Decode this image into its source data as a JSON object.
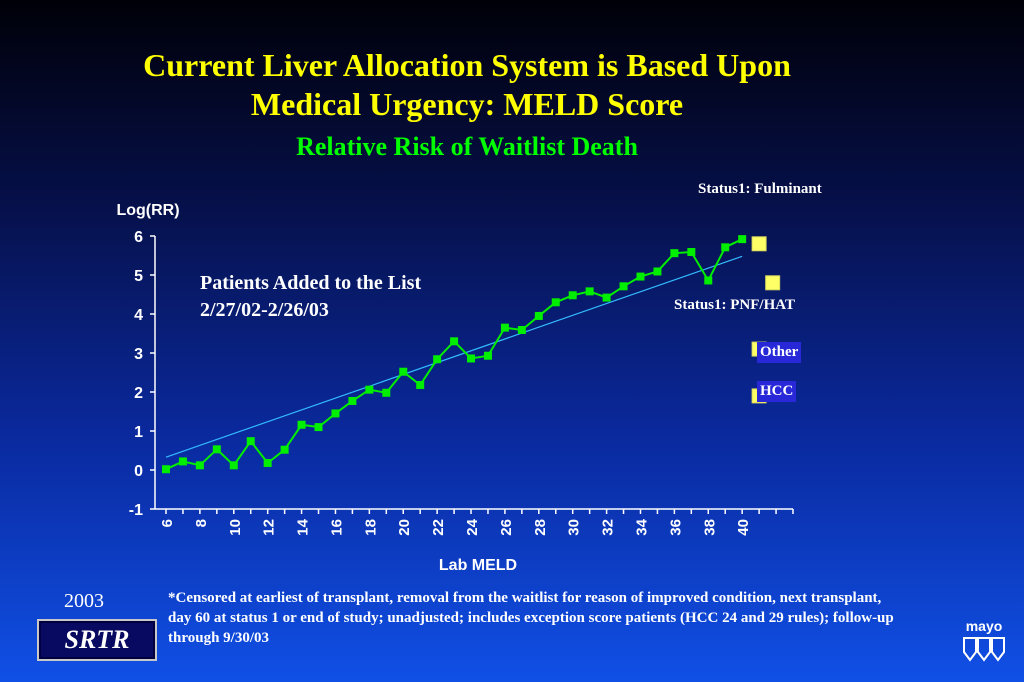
{
  "title_line1": "Current Liver Allocation System is Based Upon",
  "title_line2": "Medical Urgency: MELD Score",
  "subtitle": "Relative Risk of Waitlist Death",
  "annotation_line1": "Patients Added to the List",
  "annotation_line2": "2/27/02-2/26/03",
  "legend": {
    "status1_fulminant": "Status1: Fulminant",
    "status1_pnf_hat": "Status1: PNF/HAT",
    "other": "Other",
    "hcc": "HCC"
  },
  "footnote": "*Censored at earliest of transplant, removal from the waitlist for reason of improved condition, next transplant, day 60 at status 1 or end of study; unadjusted; includes exception score patients (HCC 24 and 29 rules); follow-up through 9/30/03",
  "year": "2003",
  "logo_srtr": "SRTR",
  "logo_mayo": "mayo",
  "colors": {
    "series": "#00ee00",
    "trend": "#33bbff",
    "marker": "#ffff66"
  },
  "chart_data": {
    "type": "line",
    "xlabel": "Lab MELD",
    "ylabel": "Log(RR)",
    "xlim": [
      6,
      43
    ],
    "ylim": [
      -1,
      6
    ],
    "x_ticks": [
      6,
      8,
      10,
      12,
      14,
      16,
      18,
      20,
      22,
      24,
      26,
      28,
      30,
      32,
      34,
      36,
      38,
      40
    ],
    "y_ticks": [
      -1,
      0,
      1,
      2,
      3,
      4,
      5,
      6
    ],
    "series": [
      {
        "x": [
          6,
          7,
          8,
          9,
          10,
          11,
          12,
          13,
          14,
          15,
          16,
          17,
          18,
          19,
          20,
          21,
          22,
          23,
          24,
          25,
          26,
          27,
          28,
          29,
          30,
          31,
          32,
          33,
          34,
          35,
          36,
          37,
          38,
          39,
          40
        ],
        "values": [
          0.02,
          0.22,
          0.12,
          0.53,
          0.12,
          0.74,
          0.18,
          0.52,
          1.16,
          1.1,
          1.45,
          1.77,
          2.06,
          1.98,
          2.52,
          2.18,
          2.84,
          3.3,
          2.86,
          2.93,
          3.65,
          3.59,
          3.95,
          4.3,
          4.48,
          4.58,
          4.42,
          4.71,
          4.96,
          5.09,
          5.56,
          5.59,
          4.86,
          5.71,
          5.92
        ]
      }
    ],
    "trend_line": {
      "x": [
        6,
        40
      ],
      "values": [
        0.33,
        5.48
      ]
    },
    "extra_markers": [
      {
        "label": "Status1: Fulminant",
        "x": 41,
        "value": 5.8
      },
      {
        "label": "Status1: PNF/HAT",
        "x": 41.8,
        "value": 4.8
      },
      {
        "label": "Other",
        "x": 41,
        "value": 3.1
      },
      {
        "label": "HCC",
        "x": 41,
        "value": 1.9
      }
    ],
    "grid": false,
    "legend": "right"
  }
}
